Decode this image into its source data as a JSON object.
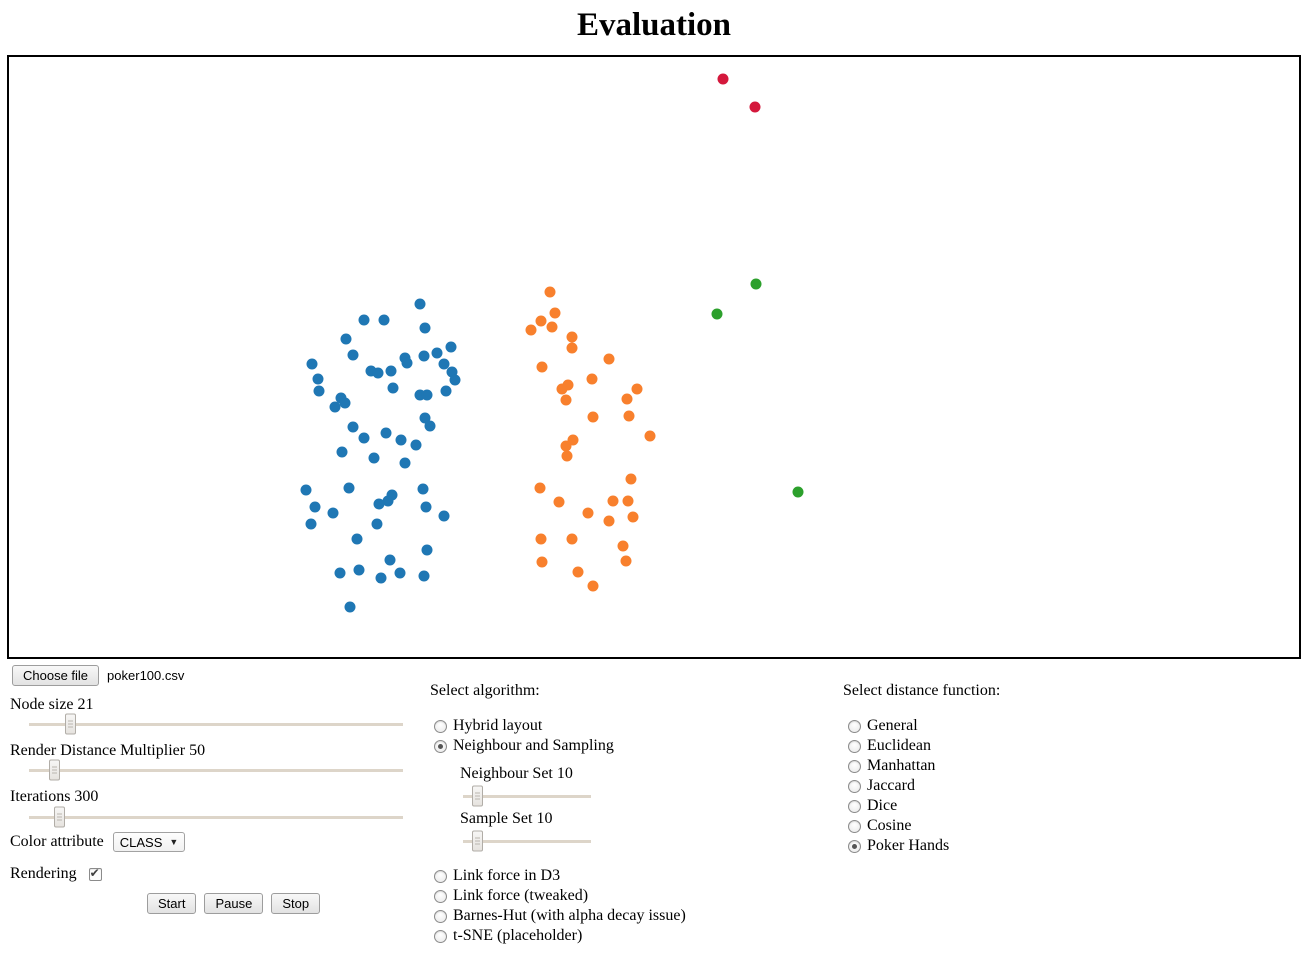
{
  "title": "Evaluation",
  "canvas": {
    "dot_radius": 5.5,
    "colors": {
      "blue": "#1f77b4",
      "orange": "#f8802d",
      "green": "#2ca02c",
      "red": "#d4183c"
    },
    "points": {
      "blue": [
        [
          411,
          247
        ],
        [
          355,
          263
        ],
        [
          375,
          263
        ],
        [
          416,
          271
        ],
        [
          337,
          282
        ],
        [
          442,
          290
        ],
        [
          344,
          298
        ],
        [
          428,
          296
        ],
        [
          396,
          301
        ],
        [
          415,
          299
        ],
        [
          398,
          306
        ],
        [
          303,
          307
        ],
        [
          435,
          307
        ],
        [
          362,
          314
        ],
        [
          369,
          316
        ],
        [
          382,
          314
        ],
        [
          443,
          315
        ],
        [
          309,
          322
        ],
        [
          446,
          323
        ],
        [
          384,
          331
        ],
        [
          310,
          334
        ],
        [
          437,
          334
        ],
        [
          411,
          338
        ],
        [
          418,
          338
        ],
        [
          332,
          341
        ],
        [
          336,
          346
        ],
        [
          326,
          350
        ],
        [
          416,
          361
        ],
        [
          421,
          369
        ],
        [
          344,
          370
        ],
        [
          377,
          376
        ],
        [
          355,
          381
        ],
        [
          392,
          383
        ],
        [
          407,
          388
        ],
        [
          333,
          395
        ],
        [
          365,
          401
        ],
        [
          396,
          406
        ],
        [
          297,
          433
        ],
        [
          340,
          431
        ],
        [
          414,
          432
        ],
        [
          306,
          450
        ],
        [
          383,
          438
        ],
        [
          379,
          444
        ],
        [
          370,
          447
        ],
        [
          324,
          456
        ],
        [
          417,
          450
        ],
        [
          302,
          467
        ],
        [
          435,
          459
        ],
        [
          368,
          467
        ],
        [
          348,
          482
        ],
        [
          418,
          493
        ],
        [
          381,
          503
        ],
        [
          331,
          516
        ],
        [
          350,
          513
        ],
        [
          391,
          516
        ],
        [
          372,
          521
        ],
        [
          415,
          519
        ],
        [
          341,
          550
        ]
      ],
      "orange": [
        [
          541,
          235
        ],
        [
          546,
          256
        ],
        [
          532,
          264
        ],
        [
          543,
          270
        ],
        [
          522,
          273
        ],
        [
          563,
          280
        ],
        [
          563,
          291
        ],
        [
          600,
          302
        ],
        [
          533,
          310
        ],
        [
          583,
          322
        ],
        [
          559,
          328
        ],
        [
          553,
          332
        ],
        [
          628,
          332
        ],
        [
          618,
          342
        ],
        [
          557,
          343
        ],
        [
          584,
          360
        ],
        [
          620,
          359
        ],
        [
          641,
          379
        ],
        [
          564,
          383
        ],
        [
          557,
          389
        ],
        [
          558,
          399
        ],
        [
          622,
          422
        ],
        [
          531,
          431
        ],
        [
          550,
          445
        ],
        [
          604,
          444
        ],
        [
          619,
          444
        ],
        [
          579,
          456
        ],
        [
          600,
          464
        ],
        [
          624,
          460
        ],
        [
          532,
          482
        ],
        [
          563,
          482
        ],
        [
          614,
          489
        ],
        [
          533,
          505
        ],
        [
          617,
          504
        ],
        [
          569,
          515
        ],
        [
          584,
          529
        ]
      ],
      "green": [
        [
          747,
          227
        ],
        [
          708,
          257
        ],
        [
          789,
          435
        ]
      ],
      "red": [
        [
          714,
          22
        ],
        [
          746,
          50
        ]
      ]
    }
  },
  "left_panel": {
    "choose_file_label": "Choose file",
    "file_name": "poker100.csv",
    "sliders": [
      {
        "label": "Node size 21",
        "percent": 10
      },
      {
        "label": "Render Distance Multiplier 50",
        "percent": 5.5
      },
      {
        "label": "Iterations 300",
        "percent": 7
      }
    ],
    "color_attribute_label": "Color attribute",
    "color_attribute_value": "CLASS",
    "rendering_label": "Rendering",
    "rendering_checked": true,
    "buttons": [
      "Start",
      "Pause",
      "Stop"
    ]
  },
  "algorithm_panel": {
    "heading": "Select algorithm:",
    "options_top": [
      {
        "label": "Hybrid layout",
        "selected": false
      },
      {
        "label": "Neighbour and Sampling",
        "selected": true
      }
    ],
    "sub_sliders": [
      {
        "label": "Neighbour Set 10",
        "percent": 8
      },
      {
        "label": "Sample Set 10",
        "percent": 8
      }
    ],
    "options_bottom": [
      {
        "label": "Link force in D3",
        "selected": false
      },
      {
        "label": "Link force (tweaked)",
        "selected": false
      },
      {
        "label": "Barnes-Hut (with alpha decay issue)",
        "selected": false
      },
      {
        "label": "t-SNE (placeholder)",
        "selected": false
      }
    ]
  },
  "distance_panel": {
    "heading": "Select distance function:",
    "options": [
      {
        "label": "General",
        "selected": false
      },
      {
        "label": "Euclidean",
        "selected": false
      },
      {
        "label": "Manhattan",
        "selected": false
      },
      {
        "label": "Jaccard",
        "selected": false
      },
      {
        "label": "Dice",
        "selected": false
      },
      {
        "label": "Cosine",
        "selected": false
      },
      {
        "label": "Poker Hands",
        "selected": true
      }
    ]
  }
}
